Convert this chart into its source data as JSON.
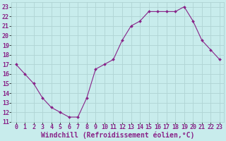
{
  "x": [
    0,
    1,
    2,
    3,
    4,
    5,
    6,
    7,
    8,
    9,
    10,
    11,
    12,
    13,
    14,
    15,
    16,
    17,
    18,
    19,
    20,
    21,
    22,
    23
  ],
  "y": [
    17,
    16,
    15,
    13.5,
    12.5,
    12,
    11.5,
    11.5,
    13.5,
    16.5,
    17,
    17.5,
    19.5,
    21,
    21.5,
    22.5,
    22.5,
    22.5,
    22.5,
    23,
    21.5,
    19.5,
    18.5,
    17.5
  ],
  "line_color": "#882288",
  "marker_color": "#882288",
  "bg_color": "#c8ecec",
  "grid_color": "#b0d4d4",
  "xlabel": "Windchill (Refroidissement éolien,°C)",
  "xlim": [
    -0.5,
    23.5
  ],
  "ylim": [
    11,
    23.5
  ],
  "xticks": [
    0,
    1,
    2,
    3,
    4,
    5,
    6,
    7,
    8,
    9,
    10,
    11,
    12,
    13,
    14,
    15,
    16,
    17,
    18,
    19,
    20,
    21,
    22,
    23
  ],
  "yticks": [
    11,
    12,
    13,
    14,
    15,
    16,
    17,
    18,
    19,
    20,
    21,
    22,
    23
  ],
  "label_color": "#882288",
  "tick_font_size": 6,
  "xlabel_font_size": 7
}
